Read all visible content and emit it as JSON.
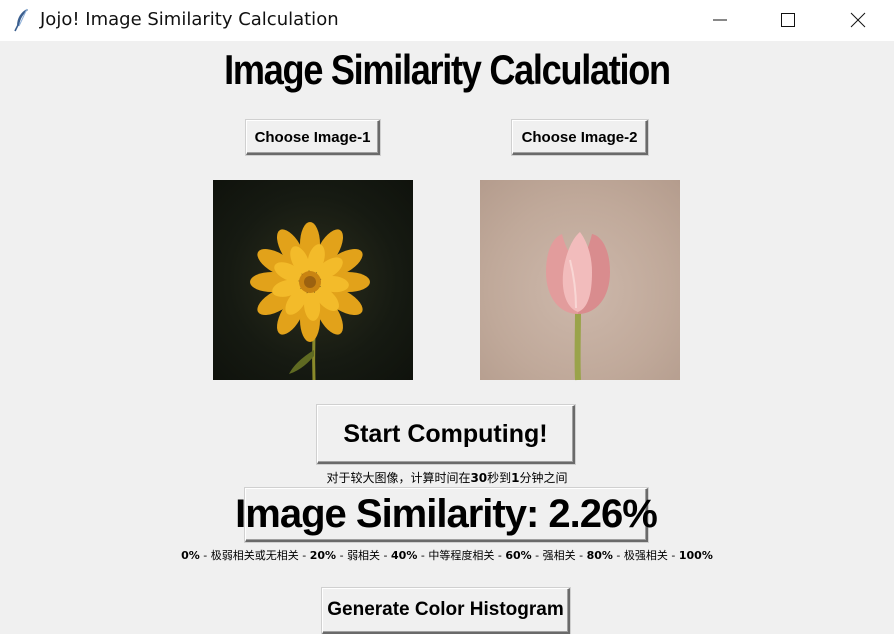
{
  "window": {
    "title": "Jojo! Image Similarity Calculation",
    "app_icon": "feather-icon"
  },
  "heading": "Image Similarity Calculation",
  "buttons": {
    "choose_image_1": "Choose Image-1",
    "choose_image_2": "Choose Image-2",
    "start_computing": "Start Computing!",
    "generate_histogram": "Generate Color Histogram"
  },
  "images": {
    "image_1": "yellow-flower-photo",
    "image_2": "pink-tulip-photo"
  },
  "compute_note": {
    "prefix": "对于较大图像，计算时间在",
    "seconds": "30",
    "middle": "秒到",
    "minutes": "1",
    "suffix": "分钟之间"
  },
  "result": {
    "label": "Image Similarity: 2.26%",
    "value_percent": 2.26
  },
  "scale_legend": [
    {
      "value": "0%",
      "label": "极弱相关或无相关"
    },
    {
      "value": "20%",
      "label": "弱相关"
    },
    {
      "value": "40%",
      "label": "中等程度相关"
    },
    {
      "value": "60%",
      "label": "强相关"
    },
    {
      "value": "80%",
      "label": "极强相关"
    },
    {
      "value": "100%",
      "label": ""
    }
  ],
  "colors": {
    "window_bg": "#f0f0f0",
    "titlebar_bg": "#ffffff"
  }
}
